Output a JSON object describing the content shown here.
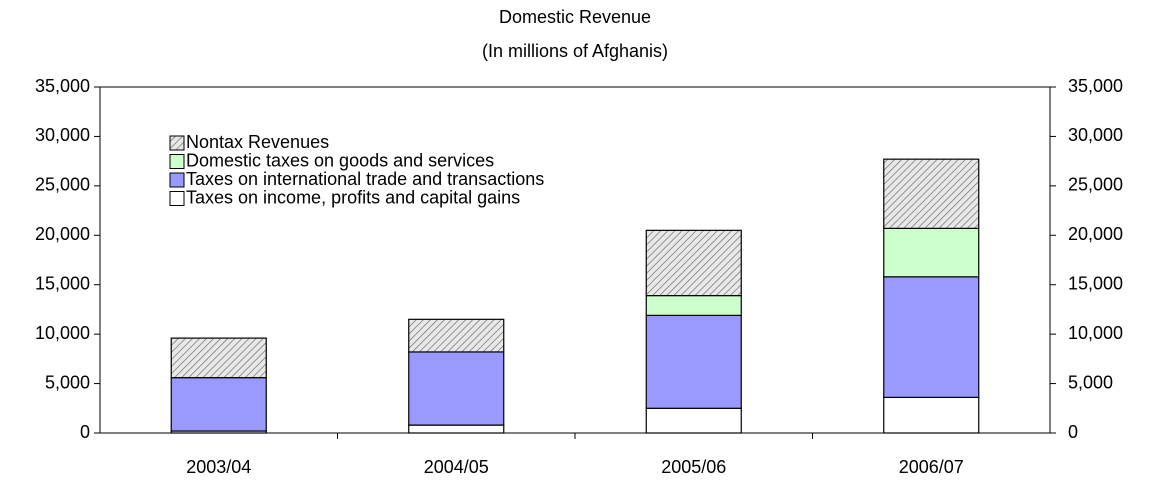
{
  "chart_data": {
    "type": "stacked_bar",
    "title": "Domestic Revenue",
    "subtitle": "(In millions of Afghanis)",
    "categories": [
      "2003/04",
      "2004/05",
      "2005/06",
      "2006/07"
    ],
    "series": [
      {
        "name": "Taxes on income, profits and capital gains",
        "color": "#ffffff",
        "values": [
          200,
          800,
          2500,
          3600
        ]
      },
      {
        "name": "Taxes on international trade and transactions",
        "color": "#9999ff",
        "values": [
          5400,
          7400,
          9400,
          12200
        ]
      },
      {
        "name": "Domestic taxes on goods and services",
        "color": "#ccffcc",
        "values": [
          0,
          0,
          2000,
          4900
        ]
      },
      {
        "name": "Nontax Revenues",
        "color": "#c0c0c0",
        "hatch": true,
        "values": [
          4000,
          3300,
          6600,
          7000
        ]
      }
    ],
    "ylim": [
      0,
      35000
    ],
    "yticks": [
      0,
      {
        "value": 5000,
        "label": "5,000"
      },
      {
        "value": 10000,
        "label": "10,000"
      },
      {
        "value": 15000,
        "label": "15,000"
      },
      {
        "value": 20000,
        "label": "20,000"
      },
      {
        "value": 25000,
        "label": "25,000"
      },
      {
        "value": 30000,
        "label": "30,000"
      },
      {
        "value": 35000,
        "label": "35,000"
      }
    ],
    "y2lim": [
      0,
      35000
    ],
    "y2ticks": [
      0,
      {
        "value": 5000,
        "label": "5,000"
      },
      {
        "value": 10000,
        "label": "10,000"
      },
      {
        "value": 15000,
        "label": "15,000"
      },
      {
        "value": 20000,
        "label": "20,000"
      },
      {
        "value": 25000,
        "label": "25,000"
      },
      {
        "value": 30000,
        "label": "30,000"
      },
      {
        "value": 35000,
        "label": "35,000"
      }
    ],
    "legend": "top-left",
    "grid": false
  }
}
